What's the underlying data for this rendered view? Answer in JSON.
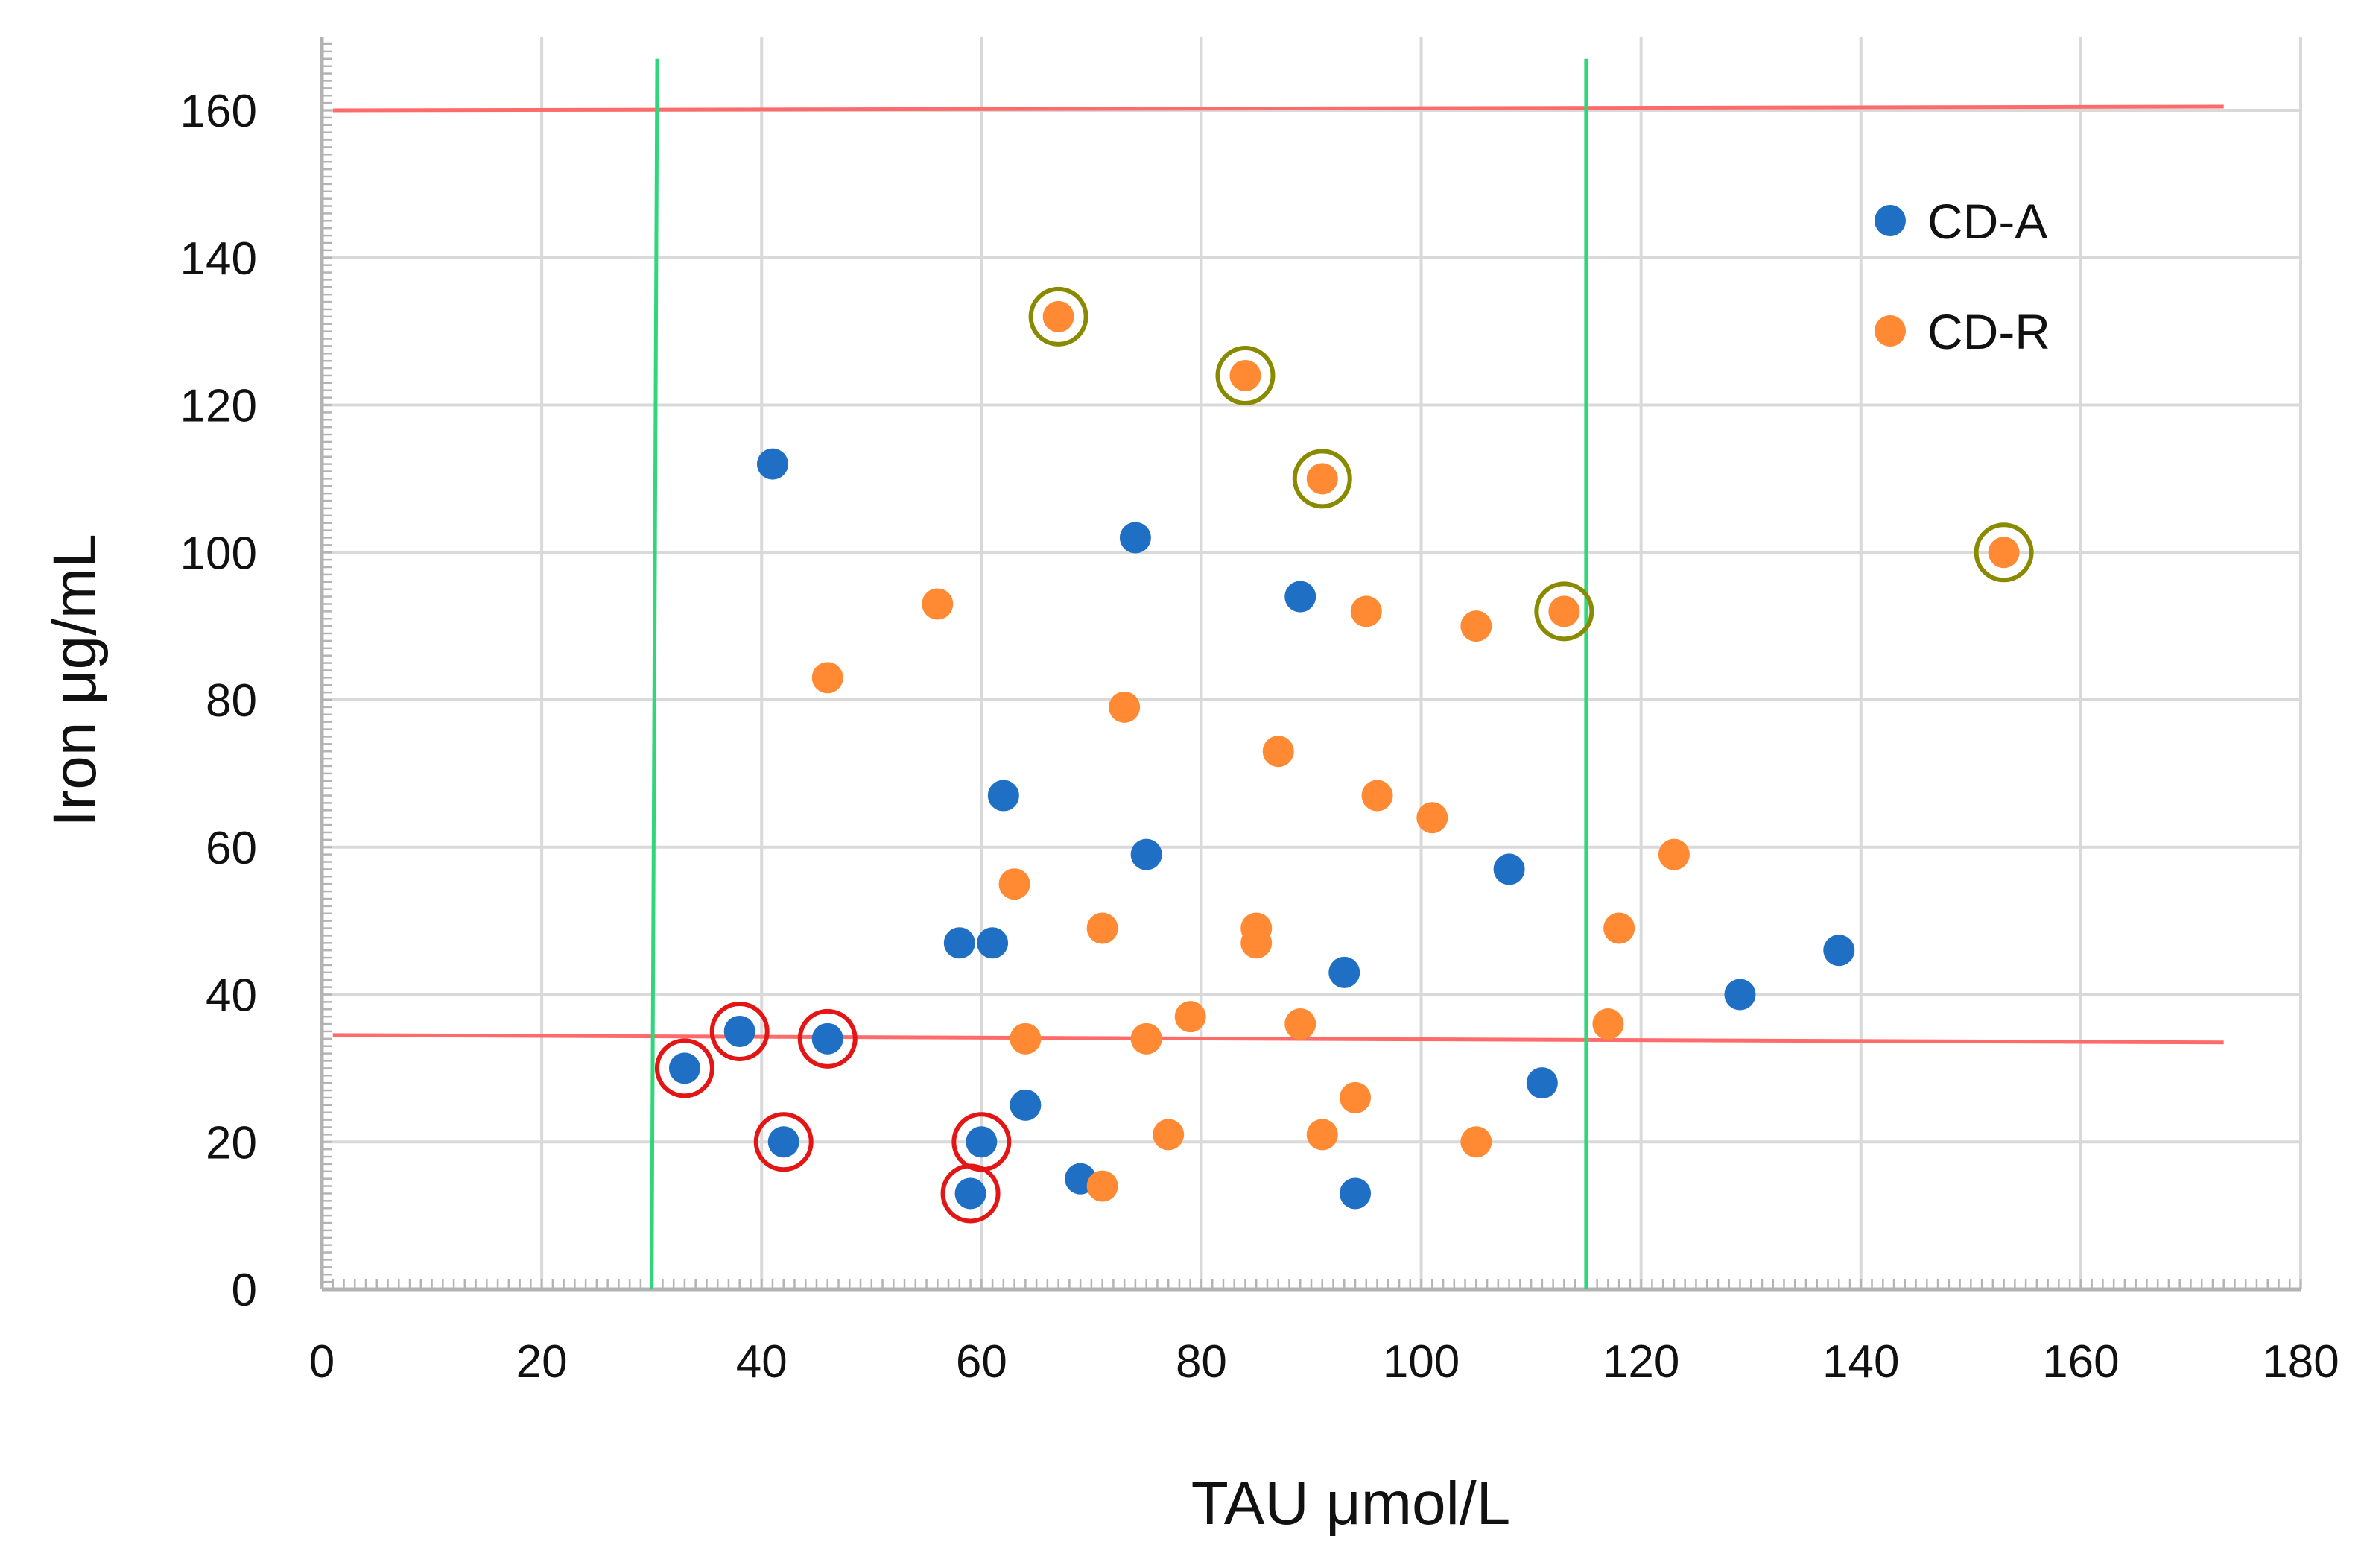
{
  "chart_data": {
    "type": "scatter",
    "title": "",
    "xlabel": "TAU μmol/L",
    "ylabel": "Iron μg/mL",
    "xlim": [
      0,
      180
    ],
    "ylim": [
      0,
      170
    ],
    "x_ticks": [
      "0",
      "20",
      "40",
      "60",
      "80",
      "100",
      "120",
      "140",
      "160",
      "180"
    ],
    "y_ticks": [
      "0",
      "20",
      "40",
      "60",
      "80",
      "100",
      "120",
      "140",
      "160"
    ],
    "grid": true,
    "legend_position": "top-right",
    "series": [
      {
        "name": "CD-A",
        "color": "#1f6fc5",
        "points": [
          [
            41,
            112
          ],
          [
            74,
            102
          ],
          [
            89,
            94
          ],
          [
            62,
            67
          ],
          [
            75,
            59
          ],
          [
            108,
            57
          ],
          [
            58,
            47
          ],
          [
            61,
            47
          ],
          [
            138,
            46
          ],
          [
            93,
            43
          ],
          [
            129,
            40
          ],
          [
            38,
            35
          ],
          [
            46,
            34
          ],
          [
            33,
            30
          ],
          [
            111,
            28
          ],
          [
            64,
            25
          ],
          [
            42,
            20
          ],
          [
            60,
            20
          ],
          [
            69,
            15
          ],
          [
            59,
            13
          ],
          [
            94,
            13
          ]
        ]
      },
      {
        "name": "CD-R",
        "color": "#ff8a33",
        "points": [
          [
            67,
            132
          ],
          [
            84,
            124
          ],
          [
            91,
            110
          ],
          [
            153,
            100
          ],
          [
            56,
            93
          ],
          [
            95,
            92
          ],
          [
            113,
            92
          ],
          [
            105,
            90
          ],
          [
            46,
            83
          ],
          [
            73,
            79
          ],
          [
            87,
            73
          ],
          [
            96,
            67
          ],
          [
            101,
            64
          ],
          [
            123,
            59
          ],
          [
            63,
            55
          ],
          [
            71,
            49
          ],
          [
            85,
            49
          ],
          [
            118,
            49
          ],
          [
            85,
            47
          ],
          [
            79,
            37
          ],
          [
            89,
            36
          ],
          [
            117,
            36
          ],
          [
            64,
            34
          ],
          [
            75,
            34
          ],
          [
            94,
            26
          ],
          [
            77,
            21
          ],
          [
            91,
            21
          ],
          [
            105,
            20
          ],
          [
            71,
            14
          ]
        ]
      }
    ],
    "reference_lines": [
      {
        "orientation": "horizontal",
        "color": "#ff6b6b",
        "from": [
          1,
          160
        ],
        "to": [
          173,
          160.5
        ]
      },
      {
        "orientation": "horizontal",
        "color": "#ff6b6b",
        "from": [
          1,
          34.5
        ],
        "to": [
          173,
          33.5
        ]
      },
      {
        "orientation": "vertical",
        "color": "#2fd67a",
        "from": [
          30,
          0
        ],
        "to": [
          30.5,
          167
        ]
      },
      {
        "orientation": "vertical",
        "color": "#2fd67a",
        "from": [
          115,
          0
        ],
        "to": [
          115,
          167
        ]
      }
    ],
    "highlighted_points": [
      {
        "series": "CD-R",
        "color": "#8a8a00",
        "points": [
          [
            67,
            132
          ],
          [
            84,
            124
          ],
          [
            91,
            110
          ],
          [
            153,
            100
          ],
          [
            113,
            92
          ]
        ]
      },
      {
        "series": "CD-A",
        "color": "#e31515",
        "points": [
          [
            33,
            30
          ],
          [
            38,
            35
          ],
          [
            46,
            34
          ],
          [
            42,
            20
          ],
          [
            60,
            20
          ],
          [
            59,
            13
          ]
        ]
      }
    ]
  }
}
